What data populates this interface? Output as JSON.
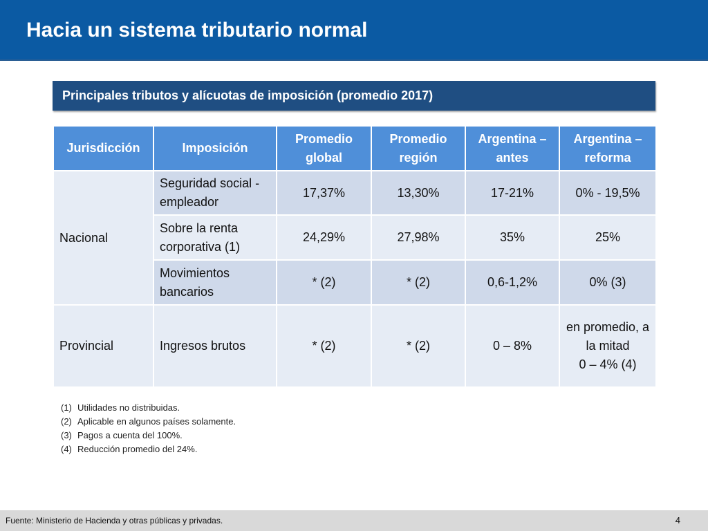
{
  "slide": {
    "title": "Hacia un sistema tributario normal",
    "subtitle": "Principales tributos y alícuotas de imposición (promedio 2017)"
  },
  "table": {
    "headers": [
      "Jurisdicción",
      "Imposición",
      "Promedio global",
      "Promedio región",
      "Argentina – antes",
      "Argentina – reforma"
    ],
    "jurisdictions": [
      "Nacional",
      "Provincial"
    ],
    "rows": [
      {
        "imposicion": "Seguridad social - empleador",
        "promedio_global": "17,37%",
        "promedio_region": "13,30%",
        "argentina_antes": "17-21%",
        "argentina_reforma": "0% - 19,5%"
      },
      {
        "imposicion": "Sobre la renta corporativa (1)",
        "promedio_global": "24,29%",
        "promedio_region": "27,98%",
        "argentina_antes": "35%",
        "argentina_reforma": "25%"
      },
      {
        "imposicion": "Movimientos bancarios",
        "promedio_global": "* (2)",
        "promedio_region": "* (2)",
        "argentina_antes": "0,6-1,2%",
        "argentina_reforma": "0% (3)"
      },
      {
        "imposicion": "Ingresos brutos",
        "promedio_global": "* (2)",
        "promedio_region": "* (2)",
        "argentina_antes": "0 – 8%",
        "argentina_reforma": "en promedio, a la mitad\n0 – 4% (4)"
      }
    ]
  },
  "notes": [
    {
      "num": "(1)",
      "text": "Utilidades no distribuidas."
    },
    {
      "num": "(2)",
      "text": "Aplicable en algunos países solamente."
    },
    {
      "num": "(3)",
      "text": "Pagos a cuenta del 100%."
    },
    {
      "num": "(4)",
      "text": "Reducción promedio del 24%."
    }
  ],
  "footer": {
    "source": "Fuente: Ministerio de Hacienda  y otras públicas y privadas.",
    "page_number": "4"
  }
}
